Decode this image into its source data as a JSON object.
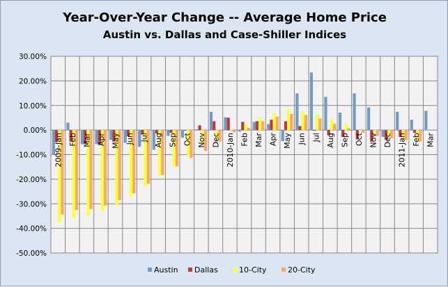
{
  "chart_data": {
    "type": "bar",
    "title": "Year-Over-Year Change -- Average Home Price",
    "subtitle": "Austin vs. Dallas and Case-Shiller Indices",
    "xlabel": "",
    "ylabel": "",
    "ylim": [
      -50,
      30
    ],
    "yticks": [
      "30.00%",
      "20.00%",
      "10.00%",
      "0.00%",
      "-10.00%",
      "-20.00%",
      "-30.00%",
      "-40.00%",
      "-50.00%"
    ],
    "grid": true,
    "legend_position": "bottom",
    "categories": [
      "2009-Jan",
      "Feb",
      "Mar",
      "Apr",
      "May",
      "Jun",
      "Jul",
      "Aug",
      "Sep",
      "Oct",
      "Nov",
      "Dec",
      "2010-Jan",
      "Feb",
      "Mar",
      "Apr",
      "May",
      "Jun",
      "Jul",
      "Aug",
      "Sep",
      "Oct",
      "Nov",
      "Dec",
      "2011-Jan",
      "Feb",
      "Mar"
    ],
    "series": [
      {
        "name": "Austin",
        "color": "#7399c6",
        "values": [
          -9.9,
          3.0,
          -5.8,
          -5.7,
          -4.0,
          -5.2,
          -6.8,
          -8.0,
          -2.4,
          -3.1,
          0.3,
          7.4,
          5.2,
          -0.6,
          3.3,
          2.4,
          -4.5,
          14.9,
          23.4,
          13.5,
          7.1,
          14.9,
          9.2,
          -2.8,
          7.4,
          4.2,
          7.8
        ]
      },
      {
        "name": "Dallas",
        "color": "#c0393b",
        "values": [
          -5.0,
          -4.7,
          -5.7,
          -6.1,
          -4.7,
          -2.6,
          -1.7,
          -1.4,
          -1.1,
          -0.2,
          1.9,
          3.6,
          5.0,
          3.3,
          3.6,
          4.2,
          3.6,
          1.6,
          -0.3,
          -2.1,
          -2.8,
          -3.8,
          -4.7,
          -4.0,
          -2.8,
          -1.1,
          null
        ]
      },
      {
        "name": "10-City",
        "color": "#ffff33",
        "values": [
          -37.7,
          -35.8,
          -34.7,
          -33.0,
          -30.5,
          -27.0,
          -22.8,
          -18.6,
          -14.6,
          -10.8,
          -5.7,
          -3.3,
          0.2,
          2.4,
          5.2,
          7.0,
          8.5,
          7.7,
          6.6,
          4.4,
          2.6,
          -0.3,
          -0.9,
          -2.4,
          -3.3,
          -4.1,
          null
        ]
      },
      {
        "name": "20-City",
        "color": "#f9a86a",
        "values": [
          -34.4,
          -32.5,
          -32.1,
          -30.7,
          -28.5,
          -25.7,
          -21.9,
          -18.4,
          -14.8,
          -11.3,
          -8.5,
          -4.7,
          -0.9,
          0.9,
          3.6,
          5.5,
          6.6,
          6.1,
          4.7,
          2.5,
          0.8,
          -1.1,
          -2.4,
          -3.3,
          -4.1,
          -4.7,
          null
        ]
      }
    ]
  }
}
